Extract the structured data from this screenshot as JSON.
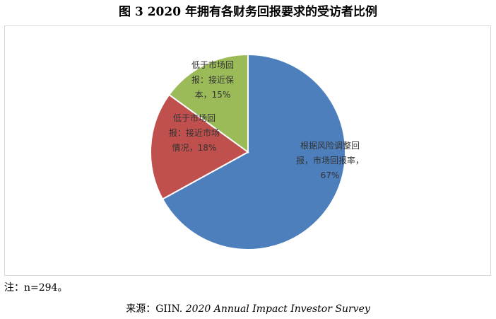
{
  "chart_data": {
    "type": "pie",
    "title": "图 3 2020 年拥有各财务回报要求的受访者比例",
    "slices": [
      {
        "label_lines": [
          "根据风险调整回",
          "报，市场回报率，",
          "67%"
        ],
        "value": 67,
        "color": "#4e7fbd"
      },
      {
        "label_lines": [
          "低于市场回",
          "报：接近市场",
          "情况，18%"
        ],
        "value": 18,
        "color": "#c0504d"
      },
      {
        "label_lines": [
          "低于市场回",
          "报：接近保",
          "本，15%"
        ],
        "value": 15,
        "color": "#9bbb59"
      }
    ],
    "start_angle_deg": 0,
    "direction": "clockwise",
    "legend": "none"
  },
  "note": "注：n=294。",
  "source": {
    "prefix": "来源：GIIN. ",
    "italic": "2020 Annual Impact Investor Survey"
  }
}
